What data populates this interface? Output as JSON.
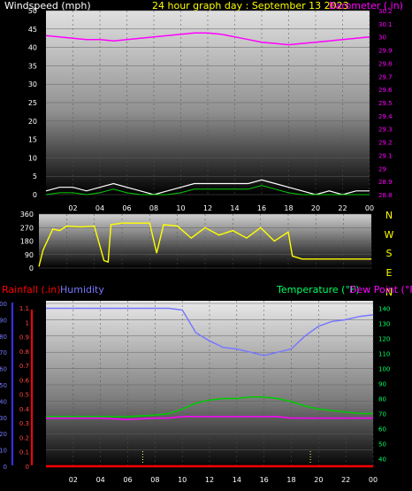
{
  "header": {
    "windspeed_label": "Windspeed (mph)",
    "title": "24 hour graph day : September 13 2023",
    "barometer_label": "Barometer (.in)"
  },
  "lower_header": {
    "rainfall_label": "Rainfall (.in)",
    "humidity_label": "Humidity",
    "temperature_label": "Temperature (°F)",
    "dewpoint_label": "Dew Point (°F)"
  },
  "compass": [
    "N",
    "W",
    "S",
    "E",
    "N"
  ],
  "colors": {
    "wind": "#ffffff",
    "wind_avg": "#00cc00",
    "barometer": "#ff00ff",
    "direction": "#ffff00",
    "humidity": "#7777ff",
    "temperature": "#00cc00",
    "dewpoint": "#ff00ff",
    "rainfall": "#ff0000"
  },
  "chart_data": [
    {
      "type": "line",
      "name": "wind-barometer",
      "x_ticks": [
        "02",
        "04",
        "06",
        "08",
        "10",
        "12",
        "14",
        "16",
        "18",
        "20",
        "22",
        "00"
      ],
      "y_left_ticks": [
        "0",
        "5",
        "10",
        "15",
        "20",
        "25",
        "30",
        "35",
        "40",
        "45",
        "50"
      ],
      "y_left_range": [
        0,
        50
      ],
      "y_right_ticks": [
        "28.8",
        "28.9",
        "29",
        "29.1",
        "29.2",
        "29.3",
        "29.4",
        "29.5",
        "29.6",
        "29.7",
        "29.8",
        "29.9",
        "30",
        "30.1",
        "30.2"
      ],
      "y_right_range": [
        28.8,
        30.2
      ],
      "series": [
        {
          "name": "Windspeed (mph)",
          "axis": "left",
          "x": [
            0,
            1,
            2,
            3,
            4,
            5,
            6,
            7,
            8,
            9,
            10,
            11,
            12,
            13,
            14,
            15,
            16,
            17,
            18,
            19,
            20,
            21,
            22,
            23,
            24
          ],
          "y": [
            1,
            2,
            2,
            1,
            2,
            3,
            2,
            1,
            0,
            1,
            2,
            3,
            3,
            3,
            3,
            3,
            4,
            3,
            2,
            1,
            0,
            1,
            0,
            1,
            1
          ]
        },
        {
          "name": "Barometer (.in)",
          "axis": "right",
          "x": [
            0,
            1,
            2,
            3,
            4,
            5,
            6,
            7,
            8,
            9,
            10,
            11,
            12,
            13,
            14,
            15,
            16,
            17,
            18,
            19,
            20,
            21,
            22,
            23,
            24
          ],
          "y": [
            30.01,
            30.0,
            29.99,
            29.98,
            29.98,
            29.97,
            29.98,
            29.99,
            30.0,
            30.01,
            30.02,
            30.03,
            30.03,
            30.02,
            30.0,
            29.98,
            29.96,
            29.95,
            29.94,
            29.95,
            29.96,
            29.97,
            29.98,
            29.99,
            30.0
          ]
        }
      ]
    },
    {
      "type": "line",
      "name": "wind-direction",
      "x_ticks": [
        "02",
        "04",
        "06",
        "08",
        "10",
        "12",
        "14",
        "16",
        "18",
        "20",
        "22",
        "00"
      ],
      "y_ticks": [
        "0",
        "90",
        "180",
        "270",
        "360"
      ],
      "y_range": [
        0,
        360
      ],
      "series": [
        {
          "name": "Wind direction",
          "x": [
            0,
            0.3,
            1,
            1.5,
            2,
            3,
            4,
            4.7,
            5,
            5.2,
            6,
            7,
            8,
            8.5,
            9,
            10,
            11,
            12,
            13,
            14,
            15,
            16,
            17,
            18,
            18.3,
            19,
            20,
            21,
            22,
            23,
            24
          ],
          "y": [
            10,
            120,
            260,
            250,
            280,
            275,
            280,
            50,
            40,
            290,
            300,
            300,
            300,
            100,
            290,
            280,
            200,
            270,
            220,
            250,
            200,
            270,
            180,
            240,
            80,
            60,
            60,
            60,
            60,
            60,
            60
          ]
        }
      ]
    },
    {
      "type": "line",
      "name": "humidity-temperature",
      "x_ticks": [
        "02",
        "04",
        "06",
        "08",
        "10",
        "12",
        "14",
        "16",
        "18",
        "20",
        "22",
        "00"
      ],
      "y_humidity_ticks": [
        "0",
        "10",
        "20",
        "30",
        "40",
        "50",
        "60",
        "70",
        "80",
        "90",
        "100"
      ],
      "y_humidity_range": [
        0,
        100
      ],
      "y_rain_ticks": [
        "0",
        "0.1",
        "0.2",
        "0.3",
        "0.4",
        "0.5",
        "0.6",
        "0.7",
        "0.8",
        "0.9",
        "1",
        "1.1"
      ],
      "y_rain_range": [
        0,
        1.15
      ],
      "y_temp_ticks": [
        "40",
        "50",
        "60",
        "70",
        "80",
        "90",
        "100",
        "110",
        "120",
        "130",
        "140"
      ],
      "y_temp_range": [
        35,
        145
      ],
      "series": [
        {
          "name": "Humidity",
          "axis": "humidity",
          "x": [
            0,
            2,
            4,
            6,
            8,
            9,
            10,
            11,
            12,
            13,
            14,
            15,
            16,
            17,
            18,
            19,
            20,
            21,
            22,
            23,
            24
          ],
          "y": [
            97,
            97,
            97,
            97,
            97,
            97,
            96,
            82,
            77,
            73,
            72,
            70,
            68,
            70,
            72,
            80,
            86,
            89,
            90,
            92,
            93
          ]
        },
        {
          "name": "Temperature (°F)",
          "axis": "temp",
          "x": [
            0,
            2,
            4,
            6,
            8,
            9,
            10,
            11,
            12,
            13,
            14,
            15,
            16,
            17,
            18,
            19,
            20,
            21,
            22,
            23,
            24
          ],
          "y": [
            68,
            68,
            68,
            68,
            69,
            70,
            73,
            77,
            79,
            80,
            80,
            81,
            81,
            80,
            78,
            75,
            73,
            72,
            71,
            70,
            70
          ]
        },
        {
          "name": "Dew Point (°F)",
          "axis": "temp",
          "x": [
            0,
            2,
            4,
            6,
            8,
            9,
            10,
            11,
            12,
            13,
            14,
            15,
            16,
            17,
            18,
            19,
            20,
            21,
            22,
            23,
            24
          ],
          "y": [
            67,
            67,
            67,
            66,
            67,
            67,
            68,
            68,
            68,
            68,
            68,
            68,
            68,
            68,
            67,
            67,
            67,
            67,
            67,
            67,
            67
          ]
        },
        {
          "name": "Rainfall (.in)",
          "axis": "rain",
          "x": [
            0,
            24
          ],
          "y": [
            0,
            0
          ]
        }
      ]
    }
  ]
}
